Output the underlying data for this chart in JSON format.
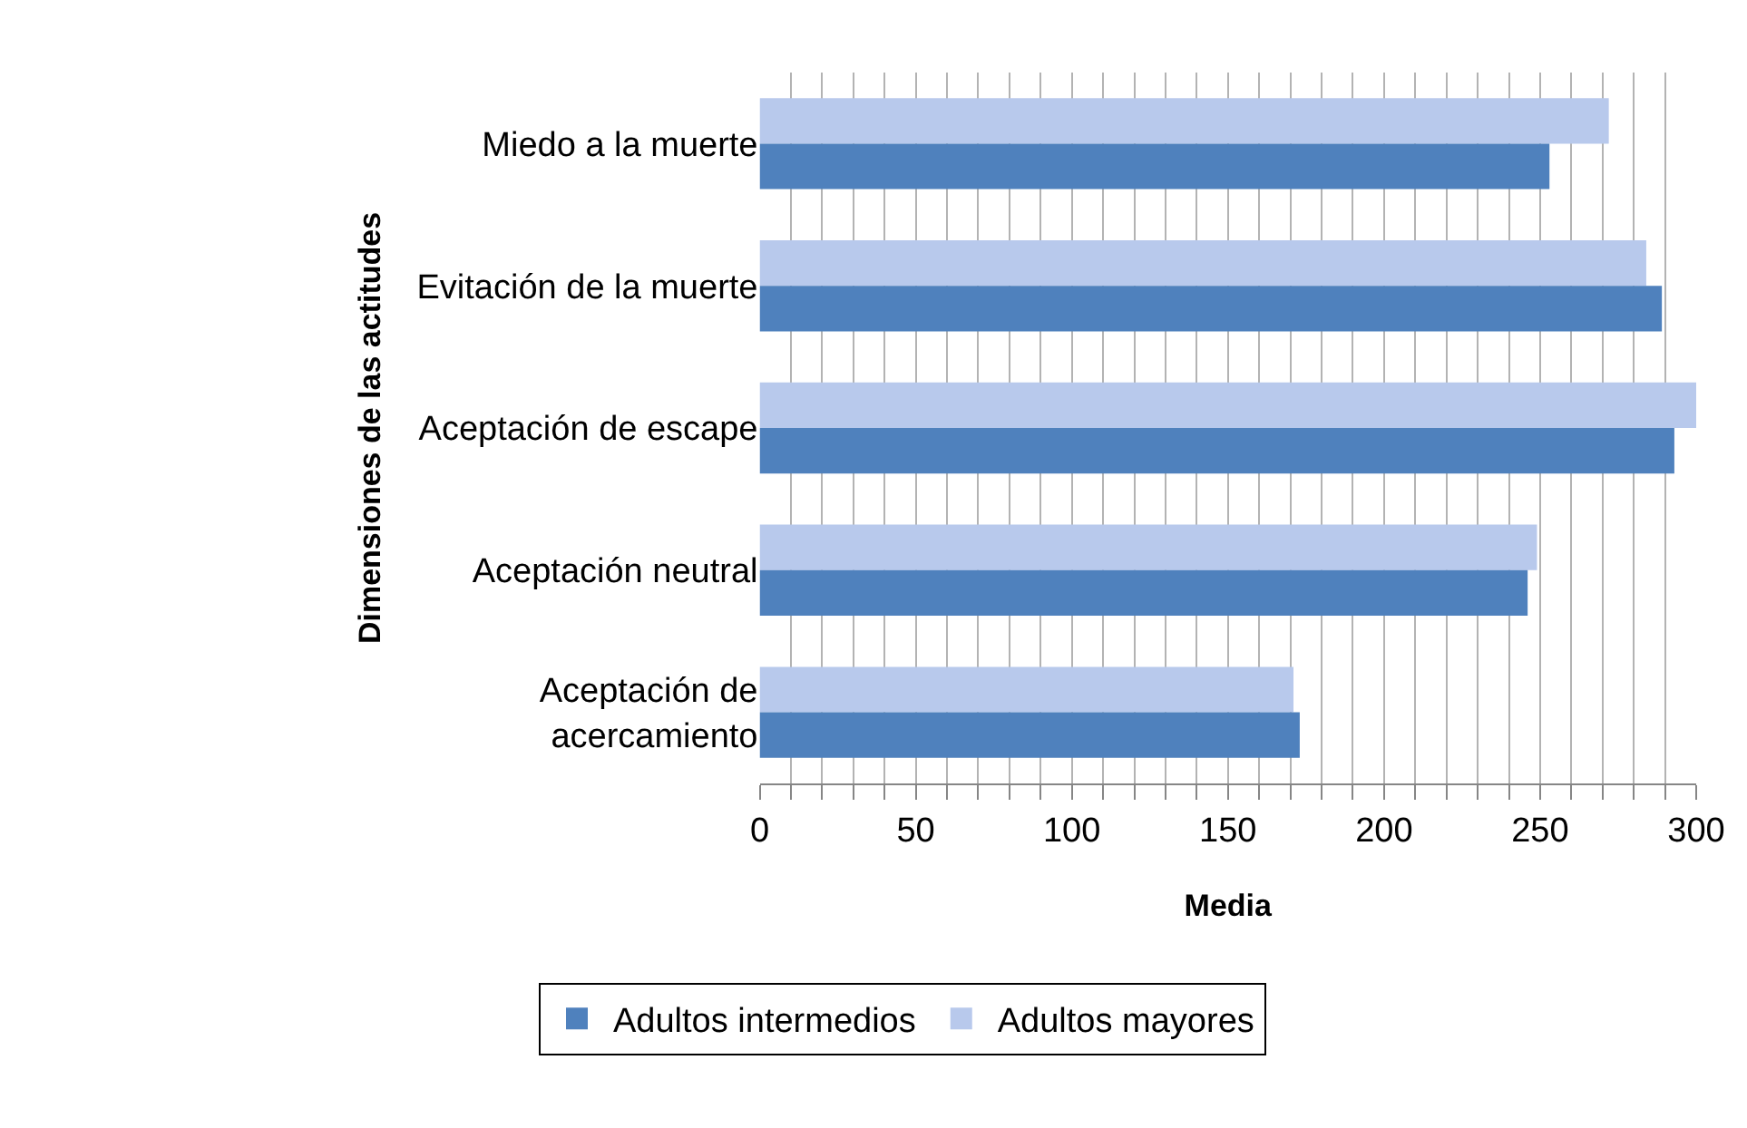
{
  "chart_data": {
    "type": "bar",
    "orientation": "horizontal",
    "xlabel": "Media",
    "ylabel": "Dimensiones de las actitudes",
    "categories": [
      "Miedo a la muerte",
      "Evitación de la muerte",
      "Aceptación de escape",
      "Aceptación neutral",
      "Aceptación de\nacercamiento"
    ],
    "series": [
      {
        "name": "Adultos mayores",
        "color": "#b8c9ec",
        "values": [
          272,
          284,
          300,
          249,
          171
        ]
      },
      {
        "name": "Adultos intermedios",
        "color": "#4f81bd",
        "values": [
          253,
          289,
          293,
          246,
          173
        ]
      }
    ],
    "xlim": [
      0,
      300
    ],
    "xticks": [
      0,
      {
        "value": 10,
        "label": null
      },
      {
        "value": 20,
        "label": null
      },
      {
        "value": 30,
        "label": null
      },
      {
        "value": 40,
        "label": null
      },
      50,
      {
        "value": 60,
        "label": null
      },
      {
        "value": 70,
        "label": null
      },
      {
        "value": 80,
        "label": null
      },
      {
        "value": 90,
        "label": null
      },
      100,
      {
        "value": 110,
        "label": null
      },
      {
        "value": 120,
        "label": null
      },
      {
        "value": 130,
        "label": null
      },
      {
        "value": 140,
        "label": null
      },
      150,
      {
        "value": 160,
        "label": null
      },
      {
        "value": 170,
        "label": null
      },
      {
        "value": 180,
        "label": null
      },
      {
        "value": 190,
        "label": null
      },
      200,
      {
        "value": 210,
        "label": null
      },
      {
        "value": 220,
        "label": null
      },
      {
        "value": 230,
        "label": null
      },
      {
        "value": 240,
        "label": null
      },
      250,
      {
        "value": 260,
        "label": null
      },
      {
        "value": 270,
        "label": null
      },
      {
        "value": 280,
        "label": null
      },
      {
        "value": 290,
        "label": null
      },
      300
    ],
    "grid": "x",
    "legend": "bottom"
  }
}
